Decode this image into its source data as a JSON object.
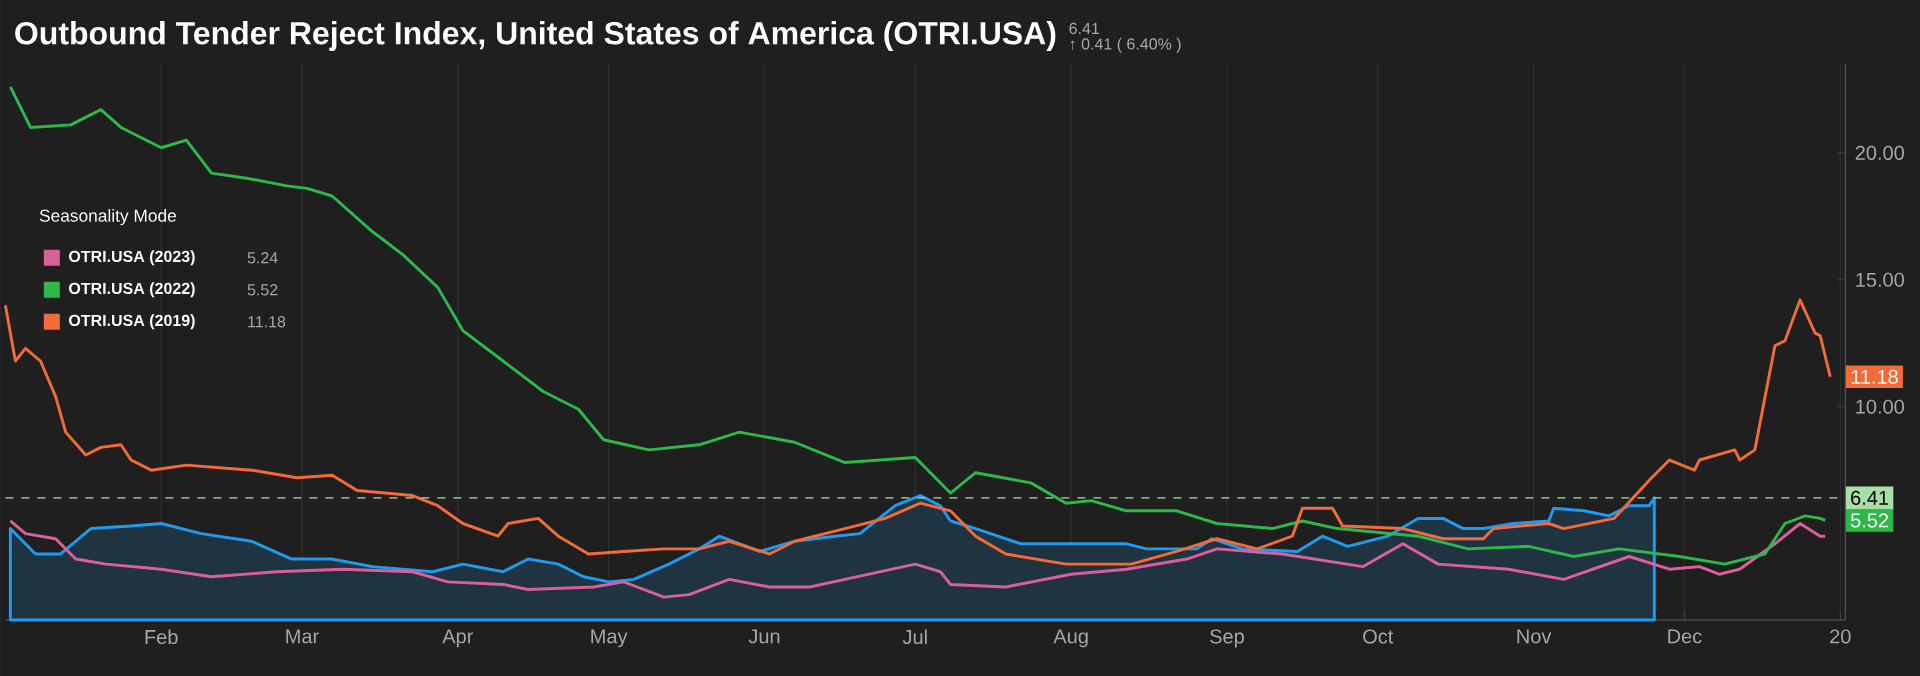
{
  "chart_data": {
    "type": "line",
    "title": "Outbound Tender Reject Index, United States of America (OTRI.USA)",
    "legend_title": "Seasonality Mode",
    "legend": "top left",
    "grid": "x",
    "marker": "none",
    "xlim": [
      "2019-01-01",
      "2020-01-02"
    ],
    "ylim": [
      1.6,
      23.5
    ],
    "xticks": [
      {
        "value": "2019-02-01",
        "label": "Feb"
      },
      {
        "value": "2019-03-01",
        "label": "Mar"
      },
      {
        "value": "2019-04-01",
        "label": "Apr"
      },
      {
        "value": "2019-05-01",
        "label": "May"
      },
      {
        "value": "2019-06-01",
        "label": "Jun"
      },
      {
        "value": "2019-07-01",
        "label": "Jul"
      },
      {
        "value": "2019-08-01",
        "label": "Aug"
      },
      {
        "value": "2019-09-01",
        "label": "Sep"
      },
      {
        "value": "2019-10-01",
        "label": "Oct"
      },
      {
        "value": "2019-11-01",
        "label": "Nov"
      },
      {
        "value": "2019-12-01",
        "label": "Dec"
      },
      {
        "value": "2020-01-01",
        "label": "20"
      }
    ],
    "yticks": [
      {
        "value": 10,
        "label": "10.00"
      },
      {
        "value": 15,
        "label": "15.00"
      },
      {
        "value": 20,
        "label": "20.00"
      }
    ],
    "ref_lines": [
      {
        "axis": "y",
        "value": 6.41,
        "label": "6.41",
        "color": "#a5e0a5",
        "line_style": "dashed"
      }
    ],
    "annotations": [
      "6.41",
      "↑ 0.41 ( 6.40% )",
      "5.24",
      "5.52",
      "11.18",
      {
        "text": "11.18",
        "x": "2019-12-30",
        "y": 11.18
      },
      {
        "text": "5.52",
        "x": "2019-12-29",
        "y": 5.52
      }
    ],
    "series": [
      {
        "name": "OTRI.USA (2023)",
        "color": "#d9609a",
        "x": [
          "2019-01-02",
          "2019-01-05",
          "2019-01-11",
          "2019-01-15",
          "2019-01-21",
          "2019-02-01",
          "2019-02-11",
          "2019-02-24",
          "2019-03-09",
          "2019-03-23",
          "2019-03-30",
          "2019-04-10",
          "2019-04-15",
          "2019-04-28",
          "2019-05-04",
          "2019-05-12",
          "2019-05-17",
          "2019-05-25",
          "2019-06-02",
          "2019-06-10",
          "2019-06-17",
          "2019-07-01",
          "2019-07-06",
          "2019-07-08",
          "2019-07-19",
          "2019-08-01",
          "2019-08-12",
          "2019-08-24",
          "2019-08-30",
          "2019-09-12",
          "2019-09-28",
          "2019-10-06",
          "2019-10-13",
          "2019-10-27",
          "2019-11-07",
          "2019-11-20",
          "2019-11-28",
          "2019-12-04",
          "2019-12-08",
          "2019-12-12",
          "2019-12-19",
          "2019-12-24",
          "2019-12-28",
          "2019-12-29"
        ],
        "values": [
          5.5,
          5.0,
          4.8,
          4.0,
          3.8,
          3.6,
          3.3,
          3.5,
          3.6,
          3.5,
          3.1,
          3.0,
          2.8,
          2.9,
          3.1,
          2.5,
          2.6,
          3.2,
          2.9,
          2.9,
          3.2,
          3.8,
          3.5,
          3.0,
          2.9,
          3.4,
          3.6,
          4.0,
          4.4,
          4.2,
          3.7,
          4.6,
          3.8,
          3.6,
          3.2,
          4.1,
          3.6,
          3.7,
          3.4,
          3.6,
          4.6,
          5.4,
          4.9,
          4.9
        ]
      },
      {
        "name": "OTRI.USA (2022)",
        "color": "#2db84a",
        "x": [
          "2019-01-02",
          "2019-01-06",
          "2019-01-14",
          "2019-01-20",
          "2019-01-24",
          "2019-02-01",
          "2019-02-06",
          "2019-02-11",
          "2019-02-18",
          "2019-02-26",
          "2019-03-02",
          "2019-03-07",
          "2019-03-15",
          "2019-03-21",
          "2019-03-28",
          "2019-04-02",
          "2019-04-10",
          "2019-04-18",
          "2019-04-25",
          "2019-04-30",
          "2019-05-09",
          "2019-05-19",
          "2019-05-27",
          "2019-06-07",
          "2019-06-17",
          "2019-07-01",
          "2019-07-08",
          "2019-07-13",
          "2019-07-24",
          "2019-07-31",
          "2019-08-05",
          "2019-08-12",
          "2019-08-22",
          "2019-08-30",
          "2019-09-10",
          "2019-09-16",
          "2019-09-23",
          "2019-10-09",
          "2019-10-19",
          "2019-10-31",
          "2019-11-09",
          "2019-11-18",
          "2019-11-30",
          "2019-12-09",
          "2019-12-17",
          "2019-12-21",
          "2019-12-25",
          "2019-12-28",
          "2019-12-29"
        ],
        "values": [
          22.6,
          21.0,
          21.1,
          21.7,
          21.0,
          20.2,
          20.5,
          19.2,
          19.0,
          18.7,
          18.6,
          18.3,
          16.9,
          16.0,
          14.7,
          13.0,
          11.8,
          10.6,
          9.9,
          8.7,
          8.3,
          8.5,
          9.0,
          8.6,
          7.8,
          8.0,
          6.6,
          7.4,
          7.0,
          6.2,
          6.3,
          5.9,
          5.9,
          5.4,
          5.2,
          5.5,
          5.2,
          4.9,
          4.4,
          4.5,
          4.1,
          4.4,
          4.1,
          3.8,
          4.2,
          5.4,
          5.7,
          5.6,
          5.52
        ]
      },
      {
        "name": "OTRI.USA (2019)",
        "color": "#f26b38",
        "x": [
          "2019-01-01",
          "2019-01-03",
          "2019-01-05",
          "2019-01-08",
          "2019-01-11",
          "2019-01-13",
          "2019-01-17",
          "2019-01-20",
          "2019-01-24",
          "2019-01-26",
          "2019-01-30",
          "2019-02-06",
          "2019-02-19",
          "2019-02-28",
          "2019-03-07",
          "2019-03-12",
          "2019-03-23",
          "2019-03-28",
          "2019-04-02",
          "2019-04-09",
          "2019-04-11",
          "2019-04-17",
          "2019-04-21",
          "2019-04-27",
          "2019-05-04",
          "2019-05-12",
          "2019-05-19",
          "2019-05-25",
          "2019-06-02",
          "2019-06-07",
          "2019-06-17",
          "2019-06-25",
          "2019-07-02",
          "2019-07-08",
          "2019-07-13",
          "2019-07-19",
          "2019-07-31",
          "2019-08-13",
          "2019-08-22",
          "2019-08-30",
          "2019-09-07",
          "2019-09-14",
          "2019-09-16",
          "2019-09-22",
          "2019-09-24",
          "2019-10-06",
          "2019-10-14",
          "2019-10-22",
          "2019-10-24",
          "2019-11-04",
          "2019-11-07",
          "2019-11-17",
          "2019-11-24",
          "2019-11-28",
          "2019-12-03",
          "2019-12-04",
          "2019-12-11",
          "2019-12-12",
          "2019-12-15",
          "2019-12-19",
          "2019-12-21",
          "2019-12-24",
          "2019-12-27",
          "2019-12-28",
          "2019-12-30"
        ],
        "values": [
          14.0,
          11.8,
          12.3,
          11.8,
          10.4,
          9.0,
          8.1,
          8.4,
          8.5,
          7.9,
          7.5,
          7.7,
          7.5,
          7.2,
          7.3,
          6.7,
          6.5,
          6.1,
          5.4,
          4.9,
          5.4,
          5.6,
          4.9,
          4.2,
          4.3,
          4.4,
          4.4,
          4.7,
          4.2,
          4.7,
          5.2,
          5.6,
          6.2,
          5.9,
          4.9,
          4.2,
          3.8,
          3.8,
          4.3,
          4.8,
          4.4,
          4.9,
          6.0,
          6.0,
          5.3,
          5.2,
          4.8,
          4.8,
          5.2,
          5.4,
          5.2,
          5.6,
          7.1,
          7.9,
          7.5,
          7.9,
          8.3,
          7.9,
          8.3,
          12.4,
          12.6,
          14.2,
          12.9,
          12.8,
          11.18
        ]
      },
      {
        "type": "area",
        "color": "#1e9bf0",
        "x": [
          "2019-01-02",
          "2019-01-07",
          "2019-01-12",
          "2019-01-18",
          "2019-01-26",
          "2019-02-01",
          "2019-02-09",
          "2019-02-19",
          "2019-02-27",
          "2019-03-07",
          "2019-03-15",
          "2019-03-27",
          "2019-04-02",
          "2019-04-10",
          "2019-04-15",
          "2019-04-21",
          "2019-04-26",
          "2019-05-01",
          "2019-05-06",
          "2019-05-13",
          "2019-05-19",
          "2019-05-23",
          "2019-05-31",
          "2019-06-07",
          "2019-06-15",
          "2019-06-20",
          "2019-06-27",
          "2019-07-02",
          "2019-07-06",
          "2019-07-08",
          "2019-07-13",
          "2019-07-22",
          "2019-07-31",
          "2019-08-12",
          "2019-08-16",
          "2019-08-26",
          "2019-08-29",
          "2019-09-04",
          "2019-09-15",
          "2019-09-20",
          "2019-09-25",
          "2019-10-03",
          "2019-10-09",
          "2019-10-14",
          "2019-10-18",
          "2019-10-22",
          "2019-10-28",
          "2019-11-04",
          "2019-11-05",
          "2019-11-11",
          "2019-11-16",
          "2019-11-20",
          "2019-11-24",
          "2019-11-25"
        ],
        "values": [
          5.2,
          4.2,
          4.2,
          5.2,
          5.3,
          5.4,
          5.0,
          4.7,
          4.0,
          4.0,
          3.7,
          3.5,
          3.8,
          3.5,
          4.0,
          3.8,
          3.3,
          3.1,
          3.2,
          3.8,
          4.4,
          4.9,
          4.3,
          4.7,
          4.9,
          5.0,
          6.1,
          6.5,
          6.1,
          5.5,
          5.2,
          4.6,
          4.6,
          4.6,
          4.4,
          4.4,
          4.8,
          4.4,
          4.3,
          4.9,
          4.5,
          4.9,
          5.6,
          5.6,
          5.2,
          5.2,
          5.4,
          5.5,
          6.0,
          5.9,
          5.7,
          6.1,
          6.1,
          6.41
        ]
      }
    ]
  }
}
